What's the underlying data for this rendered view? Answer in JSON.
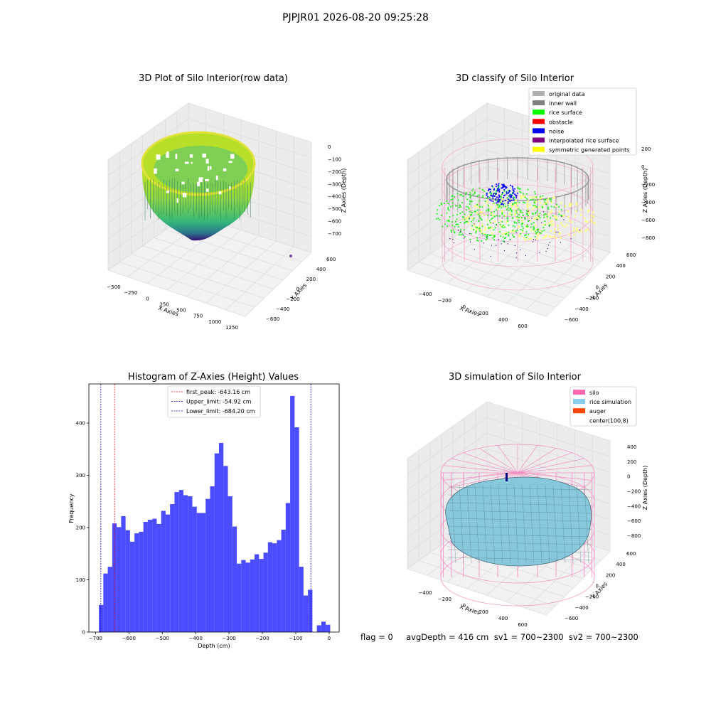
{
  "figure": {
    "title": "PJPJR01 2026-08-20 09:25:28",
    "status_text": "flag = 0     avgDepth = 416 cm  sv1 = 700~2300  sv2 = 700~2300"
  },
  "chart_data": [
    {
      "id": "raw",
      "type": "scatter",
      "title": "3D Plot of Silo Interior(row data)",
      "xlabel": "X Axies",
      "ylabel": "Y Axies",
      "zlabel": "Z Axies (Depth)",
      "x_ticks": [
        "−500",
        "−250",
        "0",
        "250",
        "500",
        "750",
        "1000",
        "1250"
      ],
      "y_ticks": [
        "−600",
        "−400",
        "−200",
        "0",
        "200",
        "400",
        "600"
      ],
      "z_ticks": [
        "−700",
        "−600",
        "−500",
        "−400",
        "−300",
        "−200",
        "−100",
        "0"
      ],
      "xlim": [
        -600,
        1300
      ],
      "ylim": [
        -700,
        700
      ],
      "zlim": [
        -750,
        0
      ],
      "colormap": "viridis",
      "outlier_point": {
        "x": 1300,
        "y": 600,
        "z": -720
      }
    },
    {
      "id": "classify",
      "type": "scatter",
      "title": "3D classify of Silo Interior",
      "xlabel": "X Axies",
      "ylabel": "Y Axies",
      "zlabel": "Z Axies (Depth)",
      "x_ticks": [
        "−400",
        "−200",
        "0",
        "200",
        "400",
        "600"
      ],
      "y_ticks": [
        "−600",
        "−400",
        "−200",
        "0",
        "200",
        "400",
        "600"
      ],
      "z_ticks": [
        "−800",
        "−600",
        "−400",
        "−200",
        "0",
        "200"
      ],
      "legend_position": "top-right",
      "legend": [
        {
          "label": "original data",
          "color": "#b0b0b0"
        },
        {
          "label": "inner wall",
          "color": "#808080"
        },
        {
          "label": "rice surface",
          "color": "#00ff00"
        },
        {
          "label": "obstacle",
          "color": "#ff0000"
        },
        {
          "label": "noise",
          "color": "#0000ff"
        },
        {
          "label": "interpolated rice surface",
          "color": "#800080"
        },
        {
          "label": "symmetric generated points",
          "color": "#ffff00"
        }
      ]
    },
    {
      "id": "histogram",
      "type": "bar",
      "title": "Histogram of Z-Axies (Height) Values",
      "xlabel": "Depth (cm)",
      "ylabel": "Frequency",
      "xlim": [
        -720,
        30
      ],
      "ylim": [
        0,
        475
      ],
      "x_ticks": [
        -700,
        -600,
        -500,
        -400,
        -300,
        -200,
        -100,
        0
      ],
      "x_tick_labels": [
        "−700",
        "−600",
        "−500",
        "−400",
        "−300",
        "−200",
        "−100",
        "0"
      ],
      "y_ticks": [
        0,
        100,
        200,
        300,
        400
      ],
      "bar_color": "#4b4bff",
      "bins_start": -690,
      "bin_width": 13.33,
      "values": [
        52,
        112,
        125,
        208,
        201,
        222,
        195,
        173,
        189,
        192,
        211,
        215,
        217,
        207,
        232,
        225,
        245,
        268,
        272,
        262,
        260,
        240,
        228,
        228,
        255,
        279,
        342,
        362,
        318,
        260,
        202,
        131,
        138,
        133,
        139,
        149,
        140,
        152,
        172,
        170,
        176,
        196,
        247,
        452,
        392,
        125,
        70,
        81,
        0,
        13,
        20,
        14
      ],
      "lines": [
        {
          "label": "first_peak: -643.16 cm",
          "value": -643.16,
          "color": "#ff0000"
        },
        {
          "label": "Upper_limit: -54.92 cm",
          "value": -54.92,
          "color": "#0000cc"
        },
        {
          "label": "Lower_limit: -684.20 cm",
          "value": -684.2,
          "color": "#0000cc"
        }
      ],
      "legend_position": "top-center"
    },
    {
      "id": "simulation",
      "type": "scatter",
      "title": "3D simulation of Silo Interior",
      "xlabel": "X Axies",
      "ylabel": "Y Axies",
      "zlabel": "Z Axies (Depth)",
      "x_ticks": [
        "−400",
        "−200",
        "0",
        "200",
        "400",
        "600"
      ],
      "y_ticks": [
        "−600",
        "−400",
        "−200",
        "0",
        "200",
        "400",
        "600"
      ],
      "z_ticks": [
        "−800",
        "−600",
        "−400",
        "−200",
        "0",
        "200",
        "400"
      ],
      "legend_position": "top-right",
      "legend": [
        {
          "label": "silo",
          "color": "#ff69b4"
        },
        {
          "label": "rice simulation",
          "color": "#87ceeb"
        },
        {
          "label": "auger",
          "color": "#ff4500"
        },
        {
          "label": "center(100,8)",
          "color": "#ffffff"
        }
      ]
    }
  ]
}
